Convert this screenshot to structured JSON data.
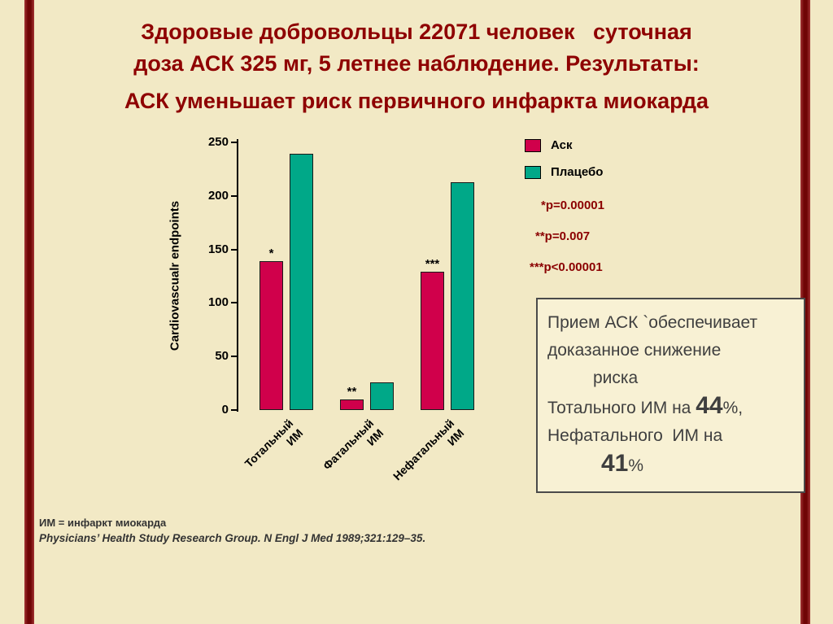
{
  "slide": {
    "title_lines": [
      "Здоровые добровольцы 22071 человек   суточная",
      "доза АСК 325 мг, 5 летнее наблюдение. Результаты:",
      "АСК уменьшает риск первичного инфаркта миокарда"
    ]
  },
  "chart_data": {
    "type": "bar",
    "title": "",
    "xlabel": "",
    "ylabel": "Cardiovascualr endpoints",
    "ylim": [
      0,
      250
    ],
    "yticks": [
      0,
      50,
      100,
      150,
      200,
      250
    ],
    "grid": false,
    "legend_position": "top-right",
    "categories": [
      "Тотальный ИМ",
      "Фатальный ИМ",
      "Нефатальный ИМ"
    ],
    "series": [
      {
        "name": "Аск",
        "color": "#d0004b",
        "values": [
          139,
          10,
          129
        ]
      },
      {
        "name": "Плацебо",
        "color": "#00a888",
        "values": [
          239,
          26,
          213
        ]
      }
    ],
    "significance_markers": [
      "*",
      "**",
      "***"
    ]
  },
  "annotations": {
    "pvalues": [
      "*p=0.00001",
      "**p=0.007",
      "***p<0.00001"
    ]
  },
  "summary_box": {
    "line1": "Прием АСК `обеспечивает",
    "line2": "доказанное снижение",
    "line3": "риска",
    "line4_pre": "Тотального ИМ на ",
    "line4_big": "44",
    "line4_post": "%,",
    "line5": "Нефатального  ИМ на",
    "line6_big": "41",
    "line6_post": "%"
  },
  "footer": {
    "note": "ИМ = инфаркт миокарда",
    "citation": "Physicians’ Health Study Research Group. N Engl J Med 1989;321:129–35."
  },
  "colors": {
    "background": "#f2e9c5",
    "side_strip": "#6f0505",
    "title_text": "#8e0000",
    "pvalue_text": "#8b0000",
    "ask_bar": "#d0004b",
    "placebo_bar": "#00a888"
  }
}
